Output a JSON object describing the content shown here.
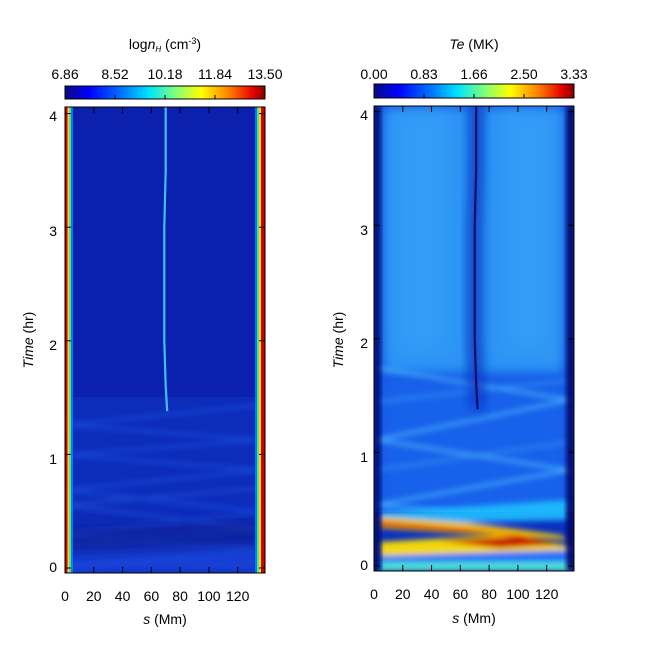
{
  "chart_data": [
    {
      "type": "heatmap",
      "colorbar": {
        "title_prefix": "log",
        "title_sub": "H",
        "title_suffix_prefix": " (cm",
        "title_sup": "-3",
        "title_suffix": ")",
        "ticks": [
          "6.86",
          "8.52",
          "10.18",
          "11.84",
          "13.50"
        ],
        "range": [
          6.86,
          13.5
        ]
      },
      "xlabel_prefix": "s",
      "xlabel_suffix": " (Mm)",
      "ylabel_prefix": "Time",
      "ylabel_suffix": " (hr)",
      "x_ticks": [
        "0",
        "20",
        "40",
        "60",
        "80",
        "100",
        "120"
      ],
      "y_ticks": [
        "0",
        "1",
        "2",
        "3",
        "4"
      ],
      "xlim": [
        0,
        139
      ],
      "ylim": [
        0,
        4.08
      ],
      "colormap": "rainbow",
      "features": {
        "footpoint_s": [
          0,
          139
        ],
        "condensation_track": [
          [
            1.38,
            71
          ],
          [
            1.6,
            70
          ],
          [
            2.0,
            69
          ],
          [
            2.5,
            69
          ],
          [
            3.0,
            69
          ],
          [
            3.5,
            70
          ],
          [
            4.08,
            70
          ]
        ]
      }
    },
    {
      "type": "heatmap",
      "colorbar": {
        "title_italic": "Te",
        "title_suffix": " (MK)",
        "ticks": [
          "0.00",
          "0.83",
          "1.66",
          "2.50",
          "3.33"
        ],
        "range": [
          0,
          3.33
        ]
      },
      "xlabel_prefix": "s",
      "xlabel_suffix": " (Mm)",
      "ylabel_prefix": "Time",
      "ylabel_suffix": " (hr)",
      "x_ticks": [
        "0",
        "20",
        "40",
        "60",
        "80",
        "100",
        "120"
      ],
      "y_ticks": [
        "0",
        "1",
        "2",
        "3",
        "4"
      ],
      "xlim": [
        0,
        139
      ],
      "ylim": [
        0,
        4.08
      ],
      "colormap": "rainbow",
      "features": {
        "condensation_track": [
          [
            1.38,
            72
          ],
          [
            1.6,
            71
          ],
          [
            2.0,
            70
          ],
          [
            2.5,
            70
          ],
          [
            3.0,
            70
          ],
          [
            3.5,
            71
          ],
          [
            4.08,
            71
          ]
        ]
      }
    }
  ]
}
